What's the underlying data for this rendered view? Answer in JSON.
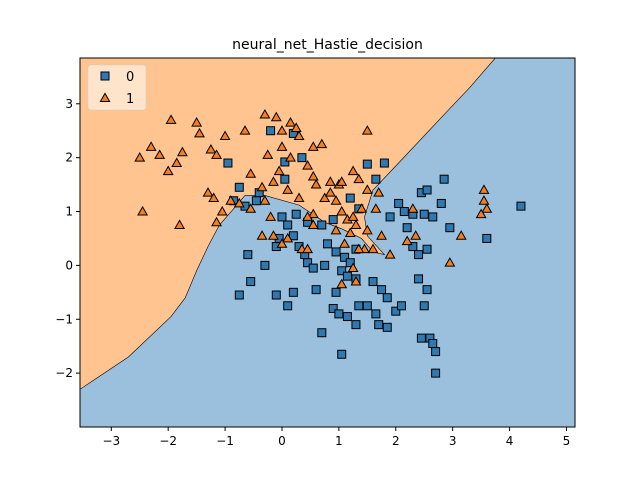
{
  "chart_data": {
    "type": "scatter",
    "title": "neural_net_Hastie_decision",
    "xlabel": "",
    "ylabel": "",
    "xlim": [
      -3.55,
      5.15
    ],
    "ylim": [
      -3.0,
      3.85
    ],
    "x_ticks": [
      -3,
      -2,
      -1,
      0,
      1,
      2,
      3,
      4,
      5
    ],
    "y_ticks": [
      -2,
      -1,
      0,
      1,
      2,
      3
    ],
    "x_tick_labels": [
      "−3",
      "−2",
      "−1",
      "0",
      "1",
      "2",
      "3",
      "4",
      "5"
    ],
    "y_tick_labels": [
      "−2",
      "−1",
      "0",
      "1",
      "2",
      "3"
    ],
    "grid": false,
    "legend_position": "top-left",
    "region_colors": {
      "0": "#9bc0dd",
      "1": "#ffc48f"
    },
    "marker_colors": {
      "0": "#2f78b0",
      "1": "#f57f1e"
    },
    "decision_boundary": [
      [
        -3.55,
        -2.3
      ],
      [
        -2.7,
        -1.7
      ],
      [
        -1.95,
        -0.95
      ],
      [
        -1.7,
        -0.6
      ],
      [
        -1.5,
        -0.1
      ],
      [
        -1.3,
        0.35
      ],
      [
        -1.1,
        0.75
      ],
      [
        -0.85,
        1.05
      ],
      [
        -0.65,
        1.3
      ],
      [
        -0.3,
        1.3
      ],
      [
        0.3,
        1.12
      ],
      [
        0.75,
        0.8
      ],
      [
        1.05,
        0.68
      ],
      [
        1.4,
        0.5
      ],
      [
        1.6,
        0.25
      ],
      [
        1.8,
        0.2
      ],
      [
        1.5,
        0.55
      ],
      [
        1.45,
        0.9
      ],
      [
        1.6,
        1.4
      ],
      [
        2.05,
        1.9
      ],
      [
        2.85,
        2.8
      ],
      [
        3.3,
        3.3
      ],
      [
        3.75,
        3.85
      ]
    ],
    "series": [
      {
        "name": "0",
        "marker": "square",
        "points": [
          [
            1.5,
            1.88
          ],
          [
            1.65,
            1.6
          ],
          [
            -0.95,
            1.9
          ],
          [
            -0.2,
            2.5
          ],
          [
            0.2,
            2.45
          ],
          [
            0.05,
            1.92
          ],
          [
            0.35,
            2.0
          ],
          [
            0.05,
            1.6
          ],
          [
            -0.75,
            1.45
          ],
          [
            -0.4,
            1.35
          ],
          [
            -0.65,
            1.1
          ],
          [
            -0.45,
            1.2
          ],
          [
            -0.85,
            1.2
          ],
          [
            -0.75,
            -0.55
          ],
          [
            -0.55,
            -0.3
          ],
          [
            -0.3,
            0.0
          ],
          [
            -0.6,
            0.2
          ],
          [
            -0.05,
            0.5
          ],
          [
            0.0,
            0.9
          ],
          [
            0.25,
            0.95
          ],
          [
            0.45,
            0.8
          ],
          [
            0.3,
            0.35
          ],
          [
            0.2,
            0.55
          ],
          [
            0.1,
            0.75
          ],
          [
            -0.1,
            0.35
          ],
          [
            0.4,
            0.2
          ],
          [
            0.45,
            0.05
          ],
          [
            0.55,
            -0.05
          ],
          [
            0.75,
            0.0
          ],
          [
            0.6,
            -0.45
          ],
          [
            0.2,
            -0.5
          ],
          [
            -0.1,
            -0.55
          ],
          [
            0.1,
            -0.75
          ],
          [
            0.7,
            0.75
          ],
          [
            0.8,
            0.4
          ],
          [
            0.95,
            0.25
          ],
          [
            0.9,
            0.85
          ],
          [
            1.1,
            0.15
          ],
          [
            1.2,
            0.05
          ],
          [
            1.3,
            0.3
          ],
          [
            1.05,
            -0.1
          ],
          [
            1.15,
            -0.2
          ],
          [
            1.3,
            -0.25
          ],
          [
            0.95,
            -0.5
          ],
          [
            0.9,
            -0.8
          ],
          [
            1.0,
            -0.9
          ],
          [
            1.15,
            -0.95
          ],
          [
            1.35,
            -0.75
          ],
          [
            1.05,
            -1.65
          ],
          [
            0.7,
            -1.25
          ],
          [
            1.3,
            -1.1
          ],
          [
            1.5,
            -0.75
          ],
          [
            1.65,
            -0.9
          ],
          [
            1.75,
            -0.45
          ],
          [
            1.6,
            -0.3
          ],
          [
            1.7,
            -1.1
          ],
          [
            1.85,
            -0.6
          ],
          [
            1.85,
            -1.15
          ],
          [
            2.0,
            -0.85
          ],
          [
            2.1,
            -0.75
          ],
          [
            2.05,
            1.15
          ],
          [
            2.15,
            1.0
          ],
          [
            2.3,
            0.95
          ],
          [
            2.2,
            0.7
          ],
          [
            2.5,
            0.95
          ],
          [
            2.45,
            1.35
          ],
          [
            2.55,
            1.4
          ],
          [
            2.65,
            0.9
          ],
          [
            2.8,
            1.15
          ],
          [
            2.85,
            1.6
          ],
          [
            2.95,
            0.7
          ],
          [
            2.3,
            0.35
          ],
          [
            2.4,
            0.2
          ],
          [
            2.55,
            0.3
          ],
          [
            2.4,
            -0.25
          ],
          [
            2.55,
            -0.45
          ],
          [
            2.5,
            -0.75
          ],
          [
            2.45,
            -1.35
          ],
          [
            2.6,
            -1.35
          ],
          [
            2.65,
            -1.45
          ],
          [
            2.7,
            -1.6
          ],
          [
            2.7,
            -2.0
          ],
          [
            3.6,
            0.5
          ],
          [
            4.2,
            1.1
          ],
          [
            1.8,
            1.9
          ],
          [
            1.2,
            1.25
          ],
          [
            1.35,
            1.05
          ],
          [
            1.9,
            0.9
          ]
        ]
      },
      {
        "name": "1",
        "marker": "triangle",
        "points": [
          [
            -2.5,
            2.0
          ],
          [
            -2.3,
            2.2
          ],
          [
            -2.15,
            2.05
          ],
          [
            -2.0,
            1.75
          ],
          [
            -1.95,
            2.7
          ],
          [
            -1.85,
            1.9
          ],
          [
            -1.75,
            2.1
          ],
          [
            -1.5,
            2.65
          ],
          [
            -1.45,
            2.45
          ],
          [
            -1.25,
            2.15
          ],
          [
            -1.15,
            2.05
          ],
          [
            -1.0,
            2.4
          ],
          [
            -0.65,
            2.5
          ],
          [
            -0.55,
            1.7
          ],
          [
            -0.3,
            2.8
          ],
          [
            -0.25,
            2.05
          ],
          [
            -0.1,
            2.75
          ],
          [
            0.0,
            2.5
          ],
          [
            0.15,
            2.65
          ],
          [
            0.25,
            2.55
          ],
          [
            0.0,
            2.2
          ],
          [
            0.15,
            2.0
          ],
          [
            0.3,
            2.4
          ],
          [
            0.45,
            1.85
          ],
          [
            0.55,
            2.2
          ],
          [
            0.7,
            2.25
          ],
          [
            -0.15,
            1.55
          ],
          [
            -0.05,
            1.75
          ],
          [
            0.1,
            1.4
          ],
          [
            0.3,
            1.25
          ],
          [
            0.55,
            1.65
          ],
          [
            0.6,
            1.5
          ],
          [
            0.85,
            1.55
          ],
          [
            1.0,
            1.5
          ],
          [
            1.05,
            1.55
          ],
          [
            1.25,
            1.75
          ],
          [
            1.35,
            1.6
          ],
          [
            1.5,
            1.4
          ],
          [
            1.5,
            2.5
          ],
          [
            1.7,
            1.35
          ],
          [
            -1.3,
            1.35
          ],
          [
            -1.2,
            1.25
          ],
          [
            -1.15,
            0.8
          ],
          [
            -1.05,
            1.0
          ],
          [
            -0.9,
            1.2
          ],
          [
            -0.75,
            1.15
          ],
          [
            -0.55,
            1.05
          ],
          [
            -0.35,
            1.45
          ],
          [
            -0.3,
            1.2
          ],
          [
            -0.2,
            0.9
          ],
          [
            -0.35,
            0.55
          ],
          [
            -0.15,
            0.55
          ],
          [
            0.0,
            0.4
          ],
          [
            0.1,
            0.5
          ],
          [
            0.35,
            0.3
          ],
          [
            0.45,
            0.3
          ],
          [
            0.55,
            0.75
          ],
          [
            0.55,
            0.95
          ],
          [
            0.75,
            1.25
          ],
          [
            0.85,
            1.35
          ],
          [
            0.95,
            1.2
          ],
          [
            1.05,
            1.0
          ],
          [
            1.15,
            0.85
          ],
          [
            1.2,
            0.6
          ],
          [
            1.3,
            0.75
          ],
          [
            1.25,
            0.9
          ],
          [
            1.4,
            1.05
          ],
          [
            1.5,
            0.65
          ],
          [
            1.45,
            0.3
          ],
          [
            1.6,
            0.3
          ],
          [
            1.35,
            0.3
          ],
          [
            1.25,
            -0.05
          ],
          [
            1.05,
            -0.35
          ],
          [
            1.3,
            -0.3
          ],
          [
            1.65,
            1.05
          ],
          [
            1.75,
            0.55
          ],
          [
            1.9,
            0.2
          ],
          [
            2.2,
            0.45
          ],
          [
            2.3,
            1.05
          ],
          [
            2.35,
            0.55
          ],
          [
            3.15,
            0.55
          ],
          [
            3.55,
            1.2
          ],
          [
            3.55,
            1.4
          ],
          [
            3.6,
            1.05
          ],
          [
            3.5,
            0.95
          ],
          [
            2.95,
            0.05
          ],
          [
            -1.8,
            0.75
          ],
          [
            -2.45,
            1.0
          ],
          [
            0.45,
            0.9
          ],
          [
            0.95,
            0.65
          ],
          [
            1.1,
            0.4
          ]
        ]
      }
    ],
    "legend": [
      {
        "label": "0",
        "marker": "square"
      },
      {
        "label": "1",
        "marker": "triangle"
      }
    ]
  }
}
